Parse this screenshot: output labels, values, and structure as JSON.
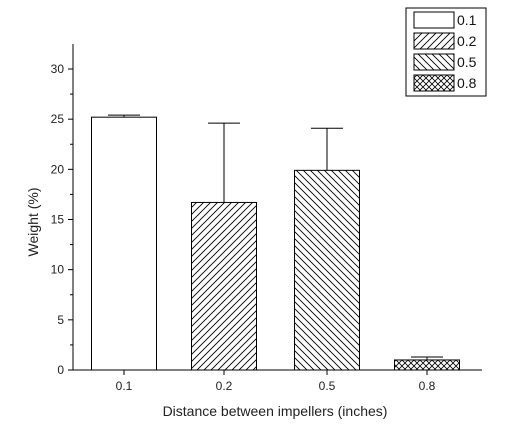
{
  "chart_data": {
    "type": "bar",
    "categories": [
      "0.1",
      "0.2",
      "0.5",
      "0.8"
    ],
    "values": [
      25.2,
      16.7,
      19.9,
      1.0
    ],
    "error_plus": [
      0.2,
      7.9,
      4.2,
      0.3
    ],
    "series": [
      {
        "name": "0.1",
        "pattern": "none"
      },
      {
        "name": "0.2",
        "pattern": "diagonal-forward"
      },
      {
        "name": "0.5",
        "pattern": "diagonal-backward"
      },
      {
        "name": "0.8",
        "pattern": "crosshatch"
      }
    ],
    "title": "",
    "xlabel": "Distance between impellers (inches)",
    "ylabel": "Weight (%)",
    "ylim": [
      0,
      32
    ],
    "yticks": [
      0,
      5,
      10,
      15,
      20,
      25,
      30
    ],
    "grid": false,
    "legend_position": "top-right",
    "colors": {
      "bar_stroke": "#000000",
      "bar_fill": "#ffffff",
      "axis": "#000000"
    }
  }
}
